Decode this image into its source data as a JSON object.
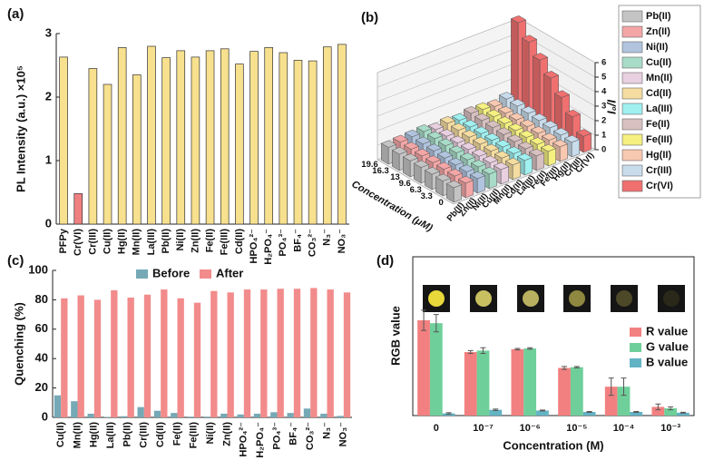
{
  "chart_data": [
    {
      "type": "bar",
      "panel_label": "(a)",
      "y_label": "PL Intensity (a.u.) ×10⁵",
      "categories": [
        "PFPy",
        "Cr(VI)",
        "Cr(III)",
        "Cu(II)",
        "Hg(II)",
        "Mn(II)",
        "La(III)",
        "Pb(II)",
        "Ni(II)",
        "Zn(II)",
        "Fe(II)",
        "Fe(III)",
        "Cd(II)",
        "HPO₄²⁻",
        "H₂PO₄⁻",
        "PO₄³⁻",
        "BF₄⁻",
        "CO₃²⁻",
        "N₃⁻",
        "NO₃⁻"
      ],
      "values": [
        2.63,
        0.48,
        2.45,
        2.2,
        2.78,
        2.35,
        2.8,
        2.62,
        2.73,
        2.63,
        2.73,
        2.76,
        2.52,
        2.72,
        2.78,
        2.7,
        2.58,
        2.57,
        2.79,
        2.83
      ],
      "colors": [
        "#f7e08e",
        "#f08080",
        "#f7e08e",
        "#f7e08e",
        "#f7e08e",
        "#f7e08e",
        "#f7e08e",
        "#f7e08e",
        "#f7e08e",
        "#f7e08e",
        "#f7e08e",
        "#f7e08e",
        "#f7e08e",
        "#f7e08e",
        "#f7e08e",
        "#f7e08e",
        "#f7e08e",
        "#f7e08e",
        "#f7e08e",
        "#f7e08e"
      ],
      "ylim": [
        0,
        3
      ],
      "yticks": [
        0,
        1,
        2,
        3
      ]
    },
    {
      "type": "bar3d",
      "panel_label": "(b)",
      "x_label": "Concentration (μM)",
      "z_label": "I₀/I",
      "categories": [
        "0",
        "3.3",
        "6.3",
        "9.6",
        "13",
        "16.3",
        "19.6"
      ],
      "zlim": [
        0,
        6
      ],
      "zticks": [
        0,
        1,
        2,
        3,
        4,
        5,
        6
      ],
      "series": [
        {
          "name": "Pb(II)",
          "color": "#c4c4c4",
          "values": [
            1.0,
            1.02,
            1.05,
            1.08,
            1.1,
            1.12,
            1.15
          ]
        },
        {
          "name": "Zn(II)",
          "color": "#f4a6a6",
          "values": [
            1.0,
            1.05,
            1.08,
            1.1,
            1.12,
            1.15,
            1.2
          ]
        },
        {
          "name": "Ni(II)",
          "color": "#b0c4de",
          "values": [
            1.0,
            1.03,
            1.06,
            1.1,
            1.15,
            1.2,
            1.25
          ]
        },
        {
          "name": "Cu(II)",
          "color": "#a8dcc8",
          "values": [
            1.0,
            1.05,
            1.1,
            1.15,
            1.2,
            1.25,
            1.3
          ]
        },
        {
          "name": "Mn(II)",
          "color": "#e8d0e0",
          "values": [
            1.0,
            1.02,
            1.04,
            1.06,
            1.08,
            1.1,
            1.12
          ]
        },
        {
          "name": "Cd(II)",
          "color": "#f5dca0",
          "values": [
            1.0,
            1.04,
            1.08,
            1.12,
            1.16,
            1.2,
            1.24
          ]
        },
        {
          "name": "La(III)",
          "color": "#a0f0f0",
          "values": [
            1.0,
            1.03,
            1.05,
            1.07,
            1.09,
            1.11,
            1.13
          ]
        },
        {
          "name": "Fe(II)",
          "color": "#d8c0c0",
          "values": [
            1.0,
            1.05,
            1.1,
            1.15,
            1.2,
            1.25,
            1.3
          ]
        },
        {
          "name": "Fe(III)",
          "color": "#f5f080",
          "values": [
            1.0,
            1.04,
            1.08,
            1.12,
            1.16,
            1.2,
            1.25
          ]
        },
        {
          "name": "Hg(II)",
          "color": "#f8c8b0",
          "values": [
            1.0,
            1.02,
            1.05,
            1.08,
            1.1,
            1.12,
            1.15
          ]
        },
        {
          "name": "Cr(III)",
          "color": "#c8dcec",
          "values": [
            1.0,
            1.06,
            1.12,
            1.18,
            1.24,
            1.3,
            1.35
          ]
        },
        {
          "name": "Cr(VI)",
          "color": "#f07070",
          "values": [
            1.1,
            2.0,
            2.9,
            3.8,
            4.6,
            5.4,
            6.3
          ]
        }
      ]
    },
    {
      "type": "grouped_bar",
      "panel_label": "(c)",
      "y_label": "Quenching (%)",
      "categories": [
        "Cu(II)",
        "Mn(II)",
        "Hg(II)",
        "La(III)",
        "Pb(II)",
        "Cr(III)",
        "Cd(II)",
        "Fe(II)",
        "Fe(III)",
        "Ni(II)",
        "Zn(II)",
        "HPO₄²⁻",
        "H₂PO₄⁻",
        "PO₄³⁻",
        "BF₄⁻",
        "CO₃²⁻",
        "N₃⁻",
        "NO₃⁻"
      ],
      "series": [
        {
          "name": "Before",
          "color": "#76a9b6",
          "values": [
            15,
            11,
            2.5,
            0.3,
            0.8,
            7,
            4.5,
            3,
            0.5,
            0.5,
            2.5,
            2,
            2.5,
            3.5,
            3,
            6,
            2.5,
            1
          ]
        },
        {
          "name": "After",
          "color": "#f28b8b",
          "values": [
            81,
            83,
            80,
            86.5,
            81.5,
            83.5,
            87,
            81,
            78,
            86,
            85,
            87,
            87,
            87.5,
            87.5,
            88,
            87,
            85
          ]
        }
      ],
      "ylim": [
        0,
        100
      ],
      "yticks": [
        0,
        20,
        40,
        60,
        80,
        100
      ]
    },
    {
      "type": "grouped_bar",
      "panel_label": "(d)",
      "y_label": "RGB value",
      "x_label": "Concentration (M)",
      "categories": [
        "0",
        "10⁻⁷",
        "10⁻⁶",
        "10⁻⁵",
        "10⁻⁴",
        "10⁻³"
      ],
      "series": [
        {
          "name": "R value",
          "color": "#f28080",
          "values": [
            66,
            44,
            46,
            33,
            20,
            6
          ],
          "errors": [
            7,
            1,
            0.5,
            1,
            6,
            2
          ]
        },
        {
          "name": "G value",
          "color": "#6fcf9a",
          "values": [
            64,
            45,
            46.5,
            33.5,
            20,
            5
          ],
          "errors": [
            6,
            2,
            0.5,
            0.5,
            6,
            1
          ]
        },
        {
          "name": "B value",
          "color": "#62b3c4",
          "values": [
            1.5,
            4,
            3.5,
            2.5,
            2.5,
            2
          ],
          "errors": [
            0.5,
            0.5,
            0.3,
            0.3,
            0.3,
            0.3
          ]
        }
      ],
      "ylim": [
        0,
        110
      ]
    }
  ]
}
